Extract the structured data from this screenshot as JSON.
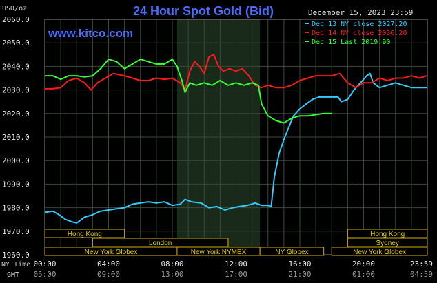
{
  "chart_data": {
    "type": "line",
    "title": "24 Hour Spot Gold (Bid)",
    "watermark": "www.kitco.com",
    "date_label": "December 15, 2023 23:59",
    "ylabel": "USD/oz",
    "ylim": [
      1960,
      2060
    ],
    "yticks": [
      "2060.0",
      "2050.0",
      "2040.0",
      "2030.0",
      "2020.0",
      "2010.0",
      "2000.0",
      "1990.0",
      "1980.0",
      "1970.0",
      "1960.0"
    ],
    "xlim": [
      0,
      24
    ],
    "ny_time_label": "NY Time",
    "gmt_label": "GMT",
    "xticks_ny": [
      "00:00",
      "04:00",
      "08:00",
      "12:00",
      "16:00",
      "20:00",
      "23:59"
    ],
    "xticks_gmt": [
      "05:00",
      "09:00",
      "13:00",
      "17:00",
      "21:00",
      "01:00",
      "04:59"
    ],
    "grid": true,
    "legend_position": "top-right",
    "colors": {
      "background": "#000000",
      "grid": "#3a4a3a",
      "title": "#4a6cff",
      "shade": "#1a2a1a"
    },
    "series": [
      {
        "name": "Dec 13 NY close 2027.20",
        "color": "#33ccff",
        "points": [
          [
            0,
            1978
          ],
          [
            0.5,
            1978.5
          ],
          [
            0.9,
            1977
          ],
          [
            1.3,
            1975
          ],
          [
            1.7,
            1974
          ],
          [
            2.0,
            1973.5
          ],
          [
            2.5,
            1976
          ],
          [
            3.0,
            1977
          ],
          [
            3.5,
            1978.5
          ],
          [
            4.0,
            1979
          ],
          [
            4.5,
            1979.5
          ],
          [
            5.0,
            1980
          ],
          [
            5.5,
            1981.5
          ],
          [
            6.0,
            1982
          ],
          [
            6.5,
            1982.5
          ],
          [
            7.0,
            1982
          ],
          [
            7.5,
            1982.5
          ],
          [
            8.0,
            1981
          ],
          [
            8.5,
            1981.5
          ],
          [
            8.8,
            1983.5
          ],
          [
            9.2,
            1982.5
          ],
          [
            9.8,
            1982
          ],
          [
            10.3,
            1980
          ],
          [
            10.8,
            1980.5
          ],
          [
            11.3,
            1979
          ],
          [
            11.8,
            1980
          ],
          [
            12.2,
            1980.5
          ],
          [
            12.7,
            1981
          ],
          [
            13.2,
            1982
          ],
          [
            13.6,
            1981
          ],
          [
            14.0,
            1981
          ],
          [
            14.2,
            1980.5
          ],
          [
            14.4,
            1993
          ],
          [
            14.7,
            2003
          ],
          [
            15.0,
            2009
          ],
          [
            15.3,
            2014
          ],
          [
            15.6,
            2019
          ],
          [
            16.0,
            2022
          ],
          [
            16.4,
            2024
          ],
          [
            16.8,
            2026
          ],
          [
            17.2,
            2027
          ],
          [
            17.6,
            2027
          ],
          [
            18.0,
            2027
          ],
          [
            18.4,
            2027
          ],
          [
            18.6,
            2025
          ],
          [
            19.0,
            2026
          ],
          [
            19.4,
            2030
          ],
          [
            19.8,
            2033
          ],
          [
            20.2,
            2036
          ],
          [
            20.4,
            2037
          ],
          [
            20.6,
            2033
          ],
          [
            21.0,
            2031
          ],
          [
            21.5,
            2032
          ],
          [
            22.0,
            2033
          ],
          [
            22.5,
            2032
          ],
          [
            23.0,
            2031
          ],
          [
            23.5,
            2031
          ],
          [
            23.98,
            2031
          ]
        ]
      },
      {
        "name": "Dec 14 NY close 2036.20",
        "color": "#ff1a1a",
        "points": [
          [
            0,
            2030.5
          ],
          [
            0.5,
            2030.5
          ],
          [
            1.0,
            2031
          ],
          [
            1.5,
            2034
          ],
          [
            2.0,
            2035
          ],
          [
            2.5,
            2033
          ],
          [
            2.9,
            2030
          ],
          [
            3.3,
            2033
          ],
          [
            3.8,
            2035
          ],
          [
            4.3,
            2037
          ],
          [
            5.0,
            2036
          ],
          [
            5.5,
            2035
          ],
          [
            6.0,
            2034
          ],
          [
            6.5,
            2034
          ],
          [
            7.0,
            2035
          ],
          [
            7.5,
            2034.5
          ],
          [
            8.0,
            2035
          ],
          [
            8.5,
            2033
          ],
          [
            8.8,
            2030
          ],
          [
            9.1,
            2038
          ],
          [
            9.4,
            2042
          ],
          [
            9.7,
            2040
          ],
          [
            10.0,
            2037
          ],
          [
            10.3,
            2044
          ],
          [
            10.6,
            2045
          ],
          [
            10.9,
            2040
          ],
          [
            11.2,
            2038
          ],
          [
            11.6,
            2039
          ],
          [
            12.0,
            2038
          ],
          [
            12.4,
            2039
          ],
          [
            12.8,
            2036
          ],
          [
            13.2,
            2032
          ],
          [
            13.6,
            2031
          ],
          [
            14.0,
            2032
          ],
          [
            14.5,
            2031
          ],
          [
            15.0,
            2031
          ],
          [
            15.5,
            2032
          ],
          [
            16.0,
            2034
          ],
          [
            16.5,
            2035
          ],
          [
            17.0,
            2036
          ],
          [
            17.5,
            2036
          ],
          [
            18.0,
            2036
          ],
          [
            18.5,
            2037
          ],
          [
            19.0,
            2033
          ],
          [
            19.5,
            2031
          ],
          [
            20.0,
            2033
          ],
          [
            20.5,
            2033
          ],
          [
            21.0,
            2035
          ],
          [
            21.5,
            2034
          ],
          [
            22.0,
            2035
          ],
          [
            22.5,
            2035
          ],
          [
            23.0,
            2036
          ],
          [
            23.5,
            2035
          ],
          [
            23.98,
            2036
          ]
        ]
      },
      {
        "name": "Dec 15 Last 2019.90",
        "color": "#33ff33",
        "points": [
          [
            0,
            2036
          ],
          [
            0.5,
            2036
          ],
          [
            1.0,
            2034.5
          ],
          [
            1.5,
            2036
          ],
          [
            2.0,
            2036
          ],
          [
            2.5,
            2035.5
          ],
          [
            3.0,
            2036
          ],
          [
            3.5,
            2039
          ],
          [
            4.0,
            2043
          ],
          [
            4.5,
            2042
          ],
          [
            5.0,
            2039
          ],
          [
            5.5,
            2041
          ],
          [
            6.0,
            2043
          ],
          [
            6.5,
            2042
          ],
          [
            7.0,
            2041
          ],
          [
            7.5,
            2041
          ],
          [
            8.0,
            2043
          ],
          [
            8.3,
            2040
          ],
          [
            8.6,
            2034
          ],
          [
            8.8,
            2029
          ],
          [
            9.1,
            2033
          ],
          [
            9.5,
            2032
          ],
          [
            10.0,
            2033
          ],
          [
            10.5,
            2032
          ],
          [
            11.0,
            2034
          ],
          [
            11.5,
            2032
          ],
          [
            12.0,
            2033
          ],
          [
            12.5,
            2032
          ],
          [
            13.0,
            2033
          ],
          [
            13.4,
            2032
          ],
          [
            13.6,
            2024
          ],
          [
            14.0,
            2019
          ],
          [
            14.5,
            2017
          ],
          [
            15.0,
            2016
          ],
          [
            15.5,
            2018
          ],
          [
            16.0,
            2019
          ],
          [
            16.5,
            2019
          ],
          [
            17.0,
            2019.5
          ],
          [
            17.5,
            2020
          ],
          [
            18.0,
            2020
          ]
        ]
      }
    ],
    "sessions": [
      {
        "label": "Hong Kong",
        "row": 0,
        "start": 0,
        "end": 5.0
      },
      {
        "label": "Hong Kong",
        "row": 0,
        "start": 19.0,
        "end": 24
      },
      {
        "label": "London",
        "row": 1,
        "start": 3.0,
        "end": 11.5
      },
      {
        "label": "Sydney",
        "row": 1,
        "start": 19.0,
        "end": 24
      },
      {
        "label": "New York Globex",
        "row": 2,
        "start": 0,
        "end": 8.3
      },
      {
        "label": "New York NYMEX",
        "row": 2,
        "start": 8.3,
        "end": 13.5
      },
      {
        "label": "NY Globex",
        "row": 2,
        "start": 13.5,
        "end": 17.5
      },
      {
        "label": "New York Globex",
        "row": 2,
        "start": 18.0,
        "end": 24
      }
    ],
    "highlight_range": [
      8.3,
      13.5
    ]
  }
}
